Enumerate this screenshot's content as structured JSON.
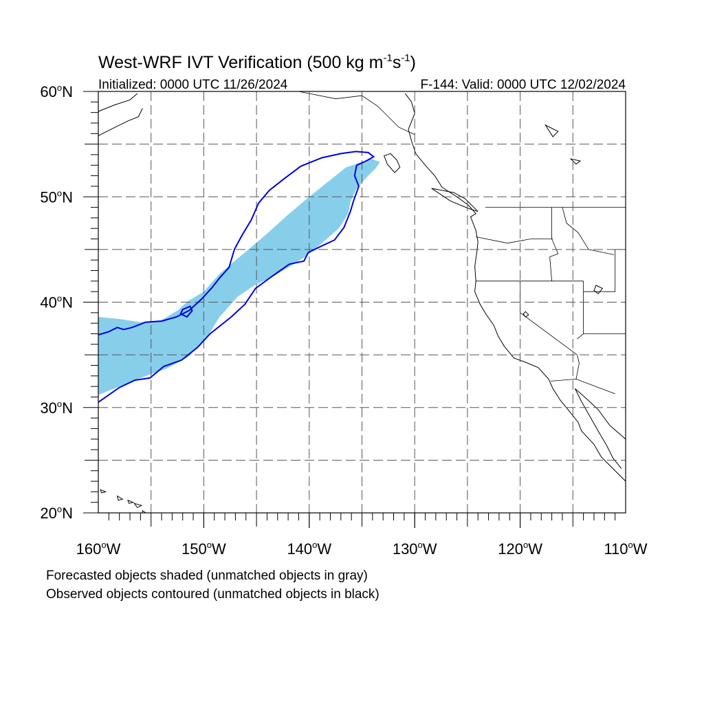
{
  "title": {
    "main": "West-WRF IVT Verification (500 kg m",
    "sup1": "-1",
    "mid": "s",
    "sup2": "-1",
    "close": ")"
  },
  "subtitle_left": "Initialized: 0000 UTC 11/26/2024",
  "subtitle_right": "F-144: Valid: 0000 UTC 12/02/2024",
  "footer": [
    "Forecasted objects shaded (unmatched objects in gray)",
    "Observed objects contoured (unmatched objects in black)"
  ],
  "colors": {
    "forecast_fill": "#87ceeb",
    "observed_contour": "#0000dd",
    "coastline": "#000000",
    "grid": "#444444"
  },
  "map": {
    "projection": "cylindrical equidistant",
    "lon_range": [
      -160,
      -110
    ],
    "lat_range": [
      20,
      60
    ],
    "grid_lons": [
      -155,
      -150,
      -145,
      -140,
      -135,
      -130,
      -125,
      -120,
      -115
    ],
    "grid_lats": [
      25,
      30,
      35,
      40,
      45,
      50,
      55
    ],
    "grid_style": "dashed",
    "lon_labels": [
      {
        "lon": -160,
        "num": "160",
        "deg": "o",
        "hem": "W"
      },
      {
        "lon": -150,
        "num": "150",
        "deg": "o",
        "hem": "W"
      },
      {
        "lon": -140,
        "num": "140",
        "deg": "o",
        "hem": "W"
      },
      {
        "lon": -130,
        "num": "130",
        "deg": "o",
        "hem": "W"
      },
      {
        "lon": -120,
        "num": "120",
        "deg": "o",
        "hem": "W"
      },
      {
        "lon": -110,
        "num": "110",
        "deg": "o",
        "hem": "W"
      }
    ],
    "lat_labels": [
      {
        "lat": 60,
        "num": "60",
        "deg": "o",
        "hem": "N"
      },
      {
        "lat": 50,
        "num": "50",
        "deg": "o",
        "hem": "N"
      },
      {
        "lat": 40,
        "num": "40",
        "deg": "o",
        "hem": "N"
      },
      {
        "lat": 30,
        "num": "30",
        "deg": "o",
        "hem": "N"
      },
      {
        "lat": 20,
        "num": "20",
        "deg": "o",
        "hem": "N"
      }
    ],
    "forecast_object": [
      [
        -160,
        38.6
      ],
      [
        -158,
        38.4
      ],
      [
        -156,
        38.1
      ],
      [
        -154,
        38.3
      ],
      [
        -152.5,
        39.2
      ],
      [
        -151.5,
        40.1
      ],
      [
        -150,
        41
      ],
      [
        -148.5,
        42.7
      ],
      [
        -146,
        44.8
      ],
      [
        -144,
        46.5
      ],
      [
        -142,
        48.3
      ],
      [
        -140,
        50
      ],
      [
        -138,
        51.6
      ],
      [
        -136.5,
        52.8
      ],
      [
        -135,
        53.3
      ],
      [
        -134.1,
        53.6
      ],
      [
        -133.3,
        53.3
      ],
      [
        -133.7,
        52.7
      ],
      [
        -134.6,
        51.8
      ],
      [
        -135.5,
        50.8
      ],
      [
        -136.1,
        49.5
      ],
      [
        -136.3,
        48.4
      ],
      [
        -137.2,
        47
      ],
      [
        -138.8,
        45.6
      ],
      [
        -140.4,
        44.3
      ],
      [
        -141.8,
        43.4
      ],
      [
        -143.5,
        42.4
      ],
      [
        -145.2,
        41.6
      ],
      [
        -146.8,
        40.5
      ],
      [
        -148.5,
        38.6
      ],
      [
        -149.8,
        36.5
      ],
      [
        -151.5,
        34.8
      ],
      [
        -153.5,
        33.7
      ],
      [
        -156,
        32.8
      ],
      [
        -158,
        32
      ],
      [
        -160,
        31.2
      ]
    ],
    "observed_contour": [
      [
        -160,
        36.9
      ],
      [
        -159,
        37.2
      ],
      [
        -158.2,
        37.6
      ],
      [
        -157.6,
        37.4
      ],
      [
        -156.8,
        37.6
      ],
      [
        -155.5,
        38.1
      ],
      [
        -154,
        38.2
      ],
      [
        -152.6,
        38.6
      ],
      [
        -151.4,
        39.2
      ],
      [
        -150.2,
        40.3
      ],
      [
        -149.2,
        41.4
      ],
      [
        -148.5,
        42.3
      ],
      [
        -147.6,
        43.3
      ],
      [
        -147.1,
        45
      ],
      [
        -146.4,
        46.3
      ],
      [
        -145.5,
        47.8
      ],
      [
        -144.8,
        49.4
      ],
      [
        -143.8,
        50.6
      ],
      [
        -142.4,
        51.7
      ],
      [
        -140.8,
        52.9
      ],
      [
        -138.8,
        53.7
      ],
      [
        -137,
        54.1
      ],
      [
        -135.6,
        54.3
      ],
      [
        -134.4,
        54.2
      ],
      [
        -133.9,
        53.8
      ],
      [
        -134.6,
        53.4
      ],
      [
        -135.5,
        53
      ],
      [
        -135.7,
        52
      ],
      [
        -135.3,
        51
      ],
      [
        -135.8,
        49.6
      ],
      [
        -136.1,
        48.6
      ],
      [
        -136.7,
        47.1
      ],
      [
        -137.6,
        45.9
      ],
      [
        -138.9,
        45.3
      ],
      [
        -140.1,
        44.7
      ],
      [
        -140.5,
        43.9
      ],
      [
        -141.9,
        43.6
      ],
      [
        -143.6,
        42.4
      ],
      [
        -145.1,
        41.3
      ],
      [
        -146.1,
        39.8
      ],
      [
        -147.4,
        38.6
      ],
      [
        -149.4,
        37
      ],
      [
        -150.6,
        35.7
      ],
      [
        -152.1,
        34.5
      ],
      [
        -153.8,
        33.9
      ],
      [
        -155.1,
        32.8
      ],
      [
        -156.5,
        32.6
      ],
      [
        -158,
        31.9
      ],
      [
        -160,
        30.5
      ]
    ],
    "observed_small_loop": [
      [
        -151.6,
        38.6
      ],
      [
        -151.1,
        39.2
      ],
      [
        -151.3,
        39.6
      ],
      [
        -152.0,
        39.3
      ],
      [
        -152.2,
        38.9
      ],
      [
        -151.6,
        38.6
      ]
    ],
    "coastline": [
      [
        -130.9,
        59.8
      ],
      [
        -130.3,
        59
      ],
      [
        -130,
        57.9
      ],
      [
        -130.6,
        56.4
      ],
      [
        -130.3,
        55.3
      ],
      [
        -129.9,
        54.1
      ],
      [
        -129,
        53
      ],
      [
        -128.1,
        52
      ],
      [
        -127.4,
        50.9
      ],
      [
        -126,
        50
      ],
      [
        -124.9,
        49.2
      ],
      [
        -124.2,
        48.4
      ],
      [
        -124.7,
        48.1
      ],
      [
        -124.2,
        46.8
      ],
      [
        -124,
        45.7
      ],
      [
        -124.1,
        44.8
      ],
      [
        -124.3,
        43.4
      ],
      [
        -124.2,
        42
      ],
      [
        -124.3,
        41
      ],
      [
        -123.8,
        39.8
      ],
      [
        -123.2,
        38.8
      ],
      [
        -122.5,
        37.8
      ],
      [
        -122.1,
        36.8
      ],
      [
        -121.5,
        35.8
      ],
      [
        -120.6,
        34.7
      ],
      [
        -119.5,
        34.3
      ],
      [
        -118.3,
        33.8
      ],
      [
        -117.3,
        32.7
      ],
      [
        -116.9,
        31.8
      ],
      [
        -116.2,
        30.7
      ],
      [
        -115.3,
        29.6
      ],
      [
        -114.5,
        28.6
      ],
      [
        -114.2,
        27.8
      ],
      [
        -113,
        26.5
      ],
      [
        -112.3,
        25.3
      ],
      [
        -111.3,
        24.3
      ],
      [
        -110,
        23
      ]
    ],
    "gulf_coast": [
      [
        -110,
        27
      ],
      [
        -111.5,
        28.3
      ],
      [
        -112.6,
        29.8
      ],
      [
        -114,
        31.1
      ],
      [
        -114.8,
        31.8
      ]
    ],
    "baja_inner": [
      [
        -114.8,
        31.8
      ],
      [
        -114.2,
        30.6
      ],
      [
        -113.3,
        29
      ],
      [
        -112.5,
        27.6
      ],
      [
        -111.8,
        26.4
      ],
      [
        -111.2,
        25.2
      ],
      [
        -110.4,
        24.2
      ]
    ],
    "islands_bc": [
      [
        [
          -132.3,
          54.1
        ],
        [
          -131.7,
          53.5
        ],
        [
          -131.4,
          52.8
        ],
        [
          -131.9,
          52.3
        ],
        [
          -132.6,
          53.1
        ],
        [
          -132.9,
          53.9
        ],
        [
          -132.3,
          54.1
        ]
      ],
      [
        [
          -128.4,
          50.8
        ],
        [
          -126.3,
          50.4
        ],
        [
          -125.2,
          49.8
        ],
        [
          -124,
          48.6
        ],
        [
          -124.9,
          48.9
        ],
        [
          -126.6,
          49.6
        ],
        [
          -128.4,
          50.8
        ]
      ]
    ],
    "islands_hawaii": [
      [
        [
          -159.8,
          22.2
        ],
        [
          -159.3,
          22.0
        ],
        [
          -159.7,
          21.9
        ],
        [
          -159.8,
          22.2
        ]
      ],
      [
        [
          -158.2,
          21.6
        ],
        [
          -157.7,
          21.3
        ],
        [
          -158.1,
          21.2
        ],
        [
          -158.2,
          21.6
        ]
      ],
      [
        [
          -157.2,
          21.2
        ],
        [
          -156.7,
          21.0
        ],
        [
          -157.1,
          20.9
        ],
        [
          -157.2,
          21.2
        ]
      ],
      [
        [
          -156.6,
          20.9
        ],
        [
          -155.9,
          20.7
        ],
        [
          -156.3,
          20.5
        ],
        [
          -156.6,
          20.9
        ]
      ],
      [
        [
          -155.8,
          20.2
        ],
        [
          -154.9,
          19.6
        ],
        [
          -155.5,
          19.0
        ],
        [
          -155.9,
          19.5
        ],
        [
          -155.8,
          20.2
        ]
      ]
    ],
    "alaska_coast": [
      [
        -160,
        58.1
      ],
      [
        -158.5,
        58.7
      ],
      [
        -157,
        59.2
      ],
      [
        -156.3,
        59.8
      ]
    ],
    "alaska_pen": [
      [
        -160,
        55.8
      ],
      [
        -158.6,
        56.5
      ],
      [
        -157.2,
        57.2
      ],
      [
        -156.2,
        57.6
      ],
      [
        -155.8,
        58.4
      ]
    ],
    "boundaries": [
      [
        [
          -141,
          60
        ],
        [
          -137.5,
          59.3
        ],
        [
          -135,
          59.6
        ],
        [
          -133.5,
          58.6
        ],
        [
          -131.5,
          56.6
        ],
        [
          -130,
          55.9
        ]
      ],
      [
        [
          -123.3,
          49
        ],
        [
          -110,
          49
        ]
      ],
      [
        [
          -124.2,
          46.2
        ],
        [
          -121.2,
          45.6
        ],
        [
          -119,
          46
        ],
        [
          -116.9,
          46
        ]
      ],
      [
        [
          -117,
          49
        ],
        [
          -117,
          46
        ],
        [
          -116.4,
          44.6
        ],
        [
          -117.2,
          44.3
        ],
        [
          -117,
          42
        ]
      ],
      [
        [
          -124.2,
          42
        ],
        [
          -114,
          42
        ]
      ],
      [
        [
          -120,
          42
        ],
        [
          -120,
          39
        ],
        [
          -114.6,
          35
        ]
      ],
      [
        [
          -114.6,
          35
        ],
        [
          -114.4,
          34.2
        ],
        [
          -114.7,
          32.7
        ]
      ],
      [
        [
          -117.1,
          32.5
        ],
        [
          -114.7,
          32.7
        ],
        [
          -111,
          31.3
        ]
      ],
      [
        [
          -114,
          42
        ],
        [
          -114,
          37
        ],
        [
          -114.6,
          36.5
        ]
      ],
      [
        [
          -111,
          45
        ],
        [
          -111,
          41
        ],
        [
          -114,
          41
        ]
      ],
      [
        [
          -116,
          49
        ],
        [
          -115.6,
          47.5
        ],
        [
          -114.5,
          46.6
        ],
        [
          -113.5,
          45
        ],
        [
          -111.1,
          44.5
        ]
      ],
      [
        [
          -114,
          37
        ],
        [
          -109.5,
          37
        ]
      ],
      [
        [
          -111,
          45
        ],
        [
          -109.5,
          45
        ]
      ]
    ],
    "lakes": [
      [
        [
          -112.8,
          41.6
        ],
        [
          -112.2,
          41.3
        ],
        [
          -112.6,
          40.8
        ],
        [
          -113.0,
          41.1
        ],
        [
          -112.8,
          41.6
        ]
      ],
      [
        [
          -119.5,
          39.1
        ],
        [
          -119.2,
          38.8
        ],
        [
          -119.5,
          38.6
        ],
        [
          -119.7,
          38.9
        ],
        [
          -119.5,
          39.1
        ]
      ],
      [
        [
          -115.2,
          53.6
        ],
        [
          -114.3,
          53.4
        ],
        [
          -114.7,
          53.1
        ],
        [
          -115.2,
          53.6
        ]
      ],
      [
        [
          -117.6,
          56.8
        ],
        [
          -116.4,
          56.2
        ],
        [
          -116.9,
          55.7
        ],
        [
          -117.6,
          56.8
        ]
      ]
    ]
  }
}
